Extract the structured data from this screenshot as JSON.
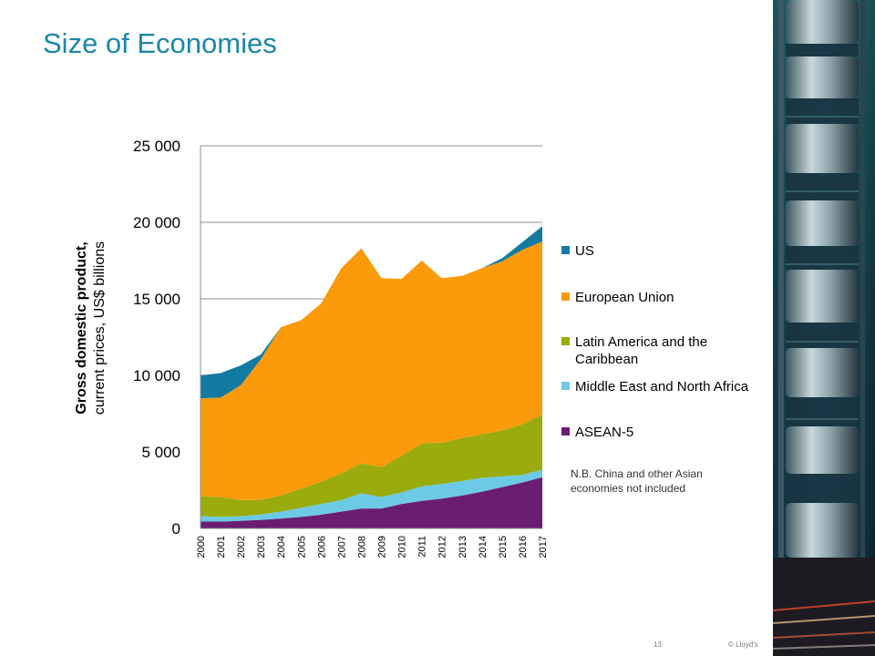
{
  "slide": {
    "title": "Size of Economies",
    "page_number": "13",
    "copyright": "© Lloyd's",
    "note": "N.B. China and other Asian economies not included"
  },
  "colors": {
    "title": "#1b86a9",
    "US": "#137ba1",
    "European Union": "#fb9a0a",
    "Latin America and the Caribbean": "#99ab0d",
    "Middle East and North Africa": "#6ccae6",
    "ASEAN-5": "#6a1d73"
  },
  "chart_data": {
    "type": "area",
    "stacked": true,
    "ylabel_bold": "Gross domestic product,",
    "ylabel_rest": "current prices, US$ billions",
    "ylim": [
      0,
      25000
    ],
    "yticks": [
      0,
      5000,
      10000,
      15000,
      20000,
      25000
    ],
    "ytick_labels": [
      "0",
      "5 000",
      "10 000",
      "15 000",
      "20 000",
      "25 000"
    ],
    "grid": "horizontal",
    "legend_position": "right",
    "x": [
      "2000",
      "2001",
      "2002",
      "2003",
      "2004",
      "2005",
      "2006",
      "2007",
      "2008",
      "2009",
      "2010",
      "2011",
      "2012",
      "2013",
      "2014",
      "2015",
      "2016",
      "2017"
    ],
    "series": [
      {
        "name": "ASEAN-5",
        "values": [
          450,
          450,
          500,
          560,
          650,
          750,
          900,
          1100,
          1300,
          1300,
          1600,
          1800,
          1950,
          2150,
          2400,
          2700,
          3000,
          3350
        ]
      },
      {
        "name": "Middle East and North Africa",
        "values": [
          350,
          300,
          300,
          350,
          450,
          600,
          700,
          750,
          1000,
          750,
          750,
          950,
          950,
          950,
          900,
          700,
          500,
          500
        ]
      },
      {
        "name": "Latin America and the Caribbean",
        "values": [
          1300,
          1300,
          1050,
          950,
          1050,
          1250,
          1450,
          1750,
          1950,
          1950,
          2400,
          2800,
          2700,
          2800,
          2850,
          3000,
          3300,
          3600
        ]
      },
      {
        "name": "European Union",
        "values": [
          6400,
          6500,
          7500,
          9200,
          11000,
          11000,
          11650,
          13400,
          14050,
          12350,
          11550,
          11950,
          10750,
          10600,
          10850,
          11050,
          11400,
          11300
        ]
      },
      {
        "name": "US",
        "values": [
          1500,
          1600,
          1300,
          300,
          0,
          0,
          0,
          0,
          0,
          0,
          0,
          0,
          0,
          0,
          0,
          200,
          500,
          1000
        ]
      }
    ],
    "legend_order": [
      "US",
      "European Union",
      "Latin America and the Caribbean",
      "Middle East and North Africa",
      "ASEAN-5"
    ]
  }
}
